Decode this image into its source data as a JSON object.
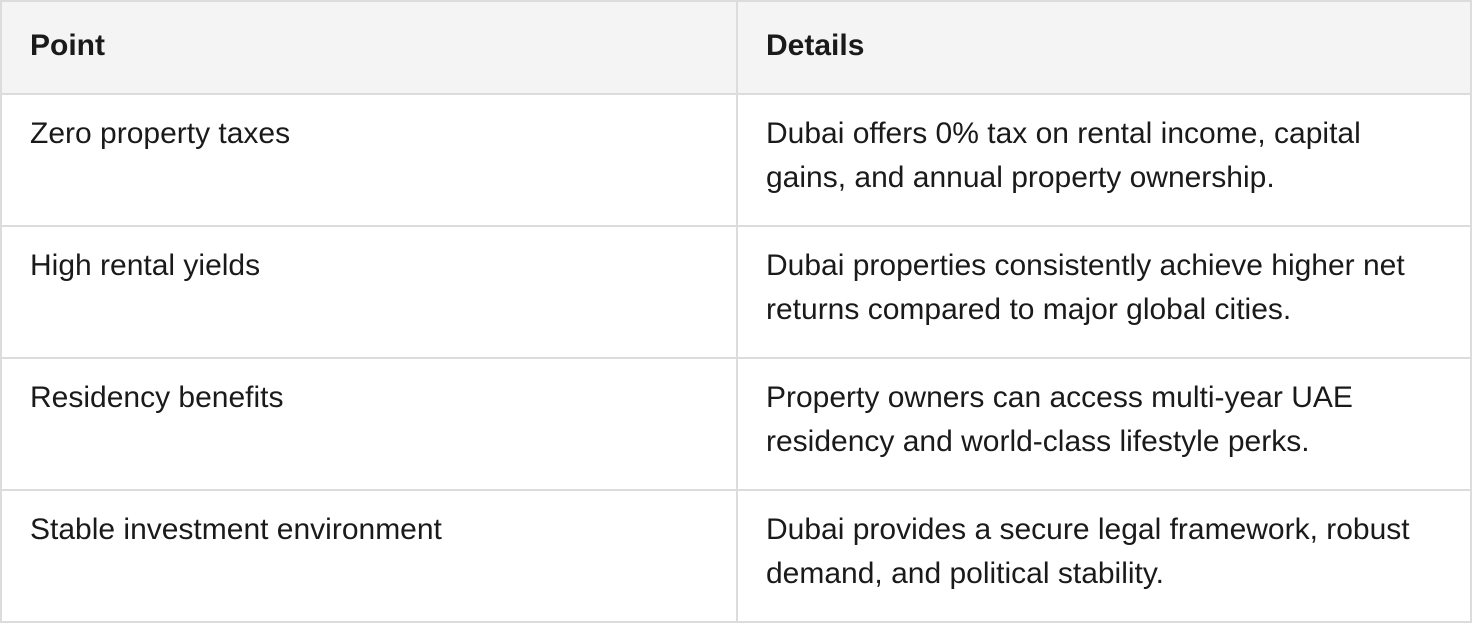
{
  "table": {
    "headers": [
      "Point",
      "Details"
    ],
    "rows": [
      {
        "point": "Zero property taxes",
        "details": "Dubai offers 0% tax on rental income, capital gains, and annual property ownership."
      },
      {
        "point": "High rental yields",
        "details": "Dubai properties consistently achieve higher net returns compared to major global cities."
      },
      {
        "point": "Residency benefits",
        "details": "Property owners can access multi-year UAE residency and world-class lifestyle perks."
      },
      {
        "point": "Stable investment environment",
        "details": "Dubai provides a secure legal framework, robust demand, and political stability."
      }
    ]
  }
}
